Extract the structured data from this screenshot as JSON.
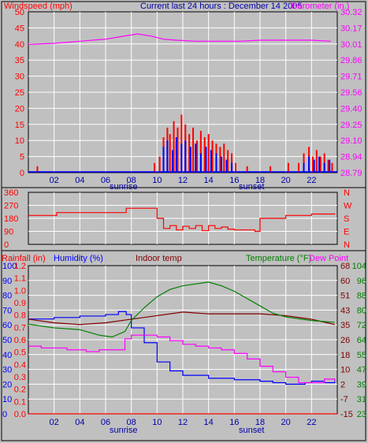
{
  "header": {
    "title": "Current last 24 hours : December 14 2005",
    "windspeed_label": "Windspeed (mph)",
    "barometer_label": "Barometer (in.)",
    "rainfall_label": "Rainfall (in)",
    "humidity_label": "Humidity (%)",
    "indoor_label": "Indoor temp",
    "temperature_label": "Temperature (°F)",
    "dewpoint_label": "Dew Point"
  },
  "colors": {
    "background": "#c0c0c0",
    "frame": "#000000",
    "windspeed": "#ff0000",
    "gust": "#0000ff",
    "barometer": "#ff00ff",
    "direction": "#ff0000",
    "humidity": "#0000ff",
    "indoor": "#800000",
    "temperature": "#008000",
    "dewpoint": "#ff00ff",
    "rainfall": "#ff0000",
    "title": "#0000aa"
  },
  "x_axis": {
    "ticks": [
      "02",
      "04",
      "06",
      "08",
      "10",
      "12",
      "14",
      "16",
      "18",
      "20",
      "22"
    ],
    "sunrise_label": "sunrise",
    "sunset_label": "sunset"
  },
  "chart_data": [
    {
      "type": "line",
      "title": "Windspeed / Barometer",
      "x_range": [
        0,
        24
      ],
      "left_axis": {
        "label": "Windspeed (mph)",
        "ylim": [
          0,
          50
        ],
        "ticks": [
          "0",
          "5",
          "10",
          "15",
          "20",
          "25",
          "30",
          "35",
          "40",
          "45",
          "50"
        ]
      },
      "right_axis": {
        "label": "Barometer (in.)",
        "ylim": [
          28.79,
          30.32
        ],
        "ticks": [
          "28.79",
          "28.94",
          "29.10",
          "29.25",
          "29.40",
          "29.56",
          "29.71",
          "29.86",
          "30.01",
          "30.17",
          "30.32"
        ]
      },
      "series": [
        {
          "name": "Barometer (in.)",
          "axis": "right",
          "x": [
            0,
            2,
            4,
            6,
            7,
            8,
            8.5,
            9.5,
            10.5,
            11.5,
            13,
            15,
            16.5,
            18,
            20,
            22,
            23.5
          ],
          "values": [
            30.01,
            30.02,
            30.04,
            30.06,
            30.08,
            30.1,
            30.11,
            30.09,
            30.06,
            30.05,
            30.04,
            30.04,
            30.04,
            30.05,
            30.05,
            30.05,
            30.04
          ]
        },
        {
          "name": "Windspeed (mph)",
          "axis": "left",
          "x": [
            0.7,
            9.8,
            10.2,
            10.5,
            10.8,
            11,
            11.3,
            11.6,
            11.9,
            12.2,
            12.5,
            12.8,
            13.1,
            13.4,
            13.7,
            14,
            14.3,
            14.6,
            14.9,
            15.2,
            15.5,
            15.8,
            16.1,
            17,
            18.8,
            20.2,
            21,
            21.4,
            21.8,
            22.1,
            22.4,
            22.7,
            23,
            23.3,
            23.6
          ],
          "values": [
            2,
            3,
            5,
            11,
            14,
            12,
            16,
            14,
            18,
            15,
            12,
            14,
            10,
            13,
            11,
            12,
            10,
            9,
            8,
            9,
            7,
            6,
            3,
            2,
            2,
            3,
            3,
            6,
            8,
            5,
            7,
            5,
            6,
            4,
            3
          ]
        },
        {
          "name": "Wind gust",
          "axis": "left",
          "x": [
            10.5,
            10.8,
            11.2,
            11.5,
            11.9,
            12.2,
            12.6,
            13,
            13.4,
            13.8,
            14.2,
            14.6,
            15,
            15.4,
            15.8,
            21.4,
            21.8,
            22.2,
            22.6,
            23,
            23.4
          ],
          "values": [
            8,
            10,
            7,
            11,
            9,
            10,
            8,
            9,
            6,
            8,
            7,
            6,
            5,
            4,
            3,
            3,
            5,
            4,
            5,
            3,
            4
          ]
        }
      ]
    },
    {
      "type": "line",
      "title": "Wind direction",
      "x_range": [
        0,
        24
      ],
      "left_axis": {
        "ylim": [
          0,
          360
        ],
        "ticks": [
          "0",
          "90",
          "180",
          "270",
          "360"
        ]
      },
      "right_axis": {
        "ticks": [
          "N",
          "W",
          "S",
          "E",
          "N"
        ]
      },
      "series": [
        {
          "name": "Direction",
          "x": [
            0,
            1.8,
            2.2,
            7.5,
            7.6,
            9.5,
            10,
            10.5,
            11,
            11.5,
            12,
            12.5,
            13,
            13.5,
            14,
            14.5,
            15,
            15.5,
            16,
            17.6,
            18,
            19,
            20,
            22,
            23.8
          ],
          "values": [
            200,
            200,
            220,
            220,
            250,
            250,
            180,
            110,
            130,
            100,
            125,
            110,
            130,
            95,
            130,
            110,
            120,
            105,
            100,
            90,
            180,
            180,
            200,
            210,
            215
          ]
        }
      ]
    },
    {
      "type": "line",
      "title": "Rainfall / Humidity / Indoor / Temperature / Dew Point",
      "x_range": [
        0,
        24
      ],
      "axes": {
        "rainfall": {
          "label": "Rainfall (in)",
          "ylim": [
            0,
            1.2
          ],
          "ticks": [
            "0.0",
            "0.1",
            "0.2",
            "0.3",
            "0.4",
            "0.5",
            "0.6",
            "0.7",
            "0.8",
            "0.9",
            "1.0",
            "1.1",
            "1.2"
          ]
        },
        "humidity": {
          "label": "Humidity (%)",
          "ylim": [
            0,
            100
          ],
          "ticks": [
            "0",
            "10",
            "20",
            "30",
            "40",
            "50",
            "60",
            "70",
            "80",
            "90",
            "100"
          ]
        },
        "indoor": {
          "label": "Indoor temp",
          "ylim": [
            -15,
            68
          ],
          "ticks": [
            "-15",
            "-7",
            "2",
            "10",
            "18",
            "26",
            "35",
            "43",
            "51",
            "60",
            "68"
          ]
        },
        "temperature": {
          "label": "Temperature (°F)",
          "ylim": [
            23,
            104
          ],
          "ticks": [
            "23",
            "31",
            "39",
            "47",
            "55",
            "64",
            "72",
            "80",
            "88",
            "96",
            "104"
          ]
        }
      },
      "series": [
        {
          "name": "Humidity (%)",
          "axis": "humidity",
          "x": [
            0,
            2,
            4,
            6,
            7,
            7.6,
            8,
            9,
            10,
            11,
            12,
            14,
            16,
            18,
            19,
            20,
            21,
            21.5,
            22,
            23,
            23.8
          ],
          "values": [
            64,
            65,
            66,
            67,
            69,
            67,
            58,
            48,
            35,
            29,
            26,
            24,
            23,
            22,
            21,
            20,
            20,
            21,
            22,
            21,
            22
          ]
        },
        {
          "name": "Indoor temp",
          "axis": "indoor",
          "x": [
            0,
            2,
            4,
            6,
            8,
            10,
            12,
            14,
            16,
            18,
            20,
            22,
            23.8
          ],
          "values": [
            38,
            36,
            35,
            36,
            38,
            40,
            42,
            41,
            41,
            41,
            40,
            38,
            35
          ]
        },
        {
          "name": "Temperature (°F)",
          "axis": "temperature",
          "x": [
            0,
            2,
            4,
            5.5,
            6.5,
            7.5,
            8,
            9,
            10,
            11,
            12,
            13,
            14,
            15,
            16,
            17,
            18,
            19,
            20,
            21,
            22,
            23.8
          ],
          "values": [
            72,
            70,
            69,
            66,
            65,
            68,
            74,
            81,
            87,
            91,
            93,
            94,
            95,
            93,
            90,
            86,
            82,
            78,
            76,
            75,
            74,
            73
          ]
        },
        {
          "name": "Dew Point",
          "axis": "temperature",
          "x": [
            0,
            1,
            3,
            4.5,
            5.5,
            6.5,
            7.5,
            8,
            9,
            10,
            11,
            12,
            13,
            14,
            15,
            16,
            17,
            18,
            19,
            20,
            21,
            22,
            23,
            23.8
          ],
          "values": [
            60,
            59,
            58,
            57,
            58,
            58,
            64,
            66,
            66,
            65,
            63,
            61,
            60,
            59,
            58,
            56,
            53,
            49,
            46,
            43,
            40,
            40,
            42,
            41
          ]
        },
        {
          "name": "Rainfall (in)",
          "axis": "rainfall",
          "x": [
            0,
            24
          ],
          "values": [
            0,
            0
          ]
        }
      ]
    }
  ]
}
